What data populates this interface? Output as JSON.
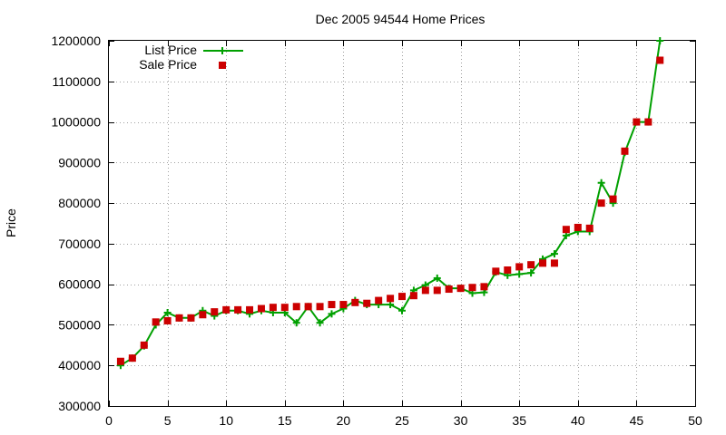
{
  "colors": {
    "list_price": "#00a000",
    "sale_price": "#cc0000",
    "grid": "#a0a0a0",
    "axis": "#000000"
  },
  "chart_data": {
    "type": "line",
    "title": "Dec 2005 94544 Home Prices",
    "xlabel": "",
    "ylabel": "Price",
    "xlim": [
      0,
      50
    ],
    "ylim": [
      300000,
      1200000
    ],
    "xticks": [
      0,
      5,
      10,
      15,
      20,
      25,
      30,
      35,
      40,
      45,
      50
    ],
    "yticks": [
      300000,
      400000,
      500000,
      600000,
      700000,
      800000,
      900000,
      1000000,
      1100000,
      1200000
    ],
    "xtick_labels": [
      "0",
      "5",
      "10",
      "15",
      "20",
      "25",
      "30",
      "35",
      "40",
      "45",
      "50"
    ],
    "ytick_labels": [
      "300000",
      "400000",
      "500000",
      "600000",
      "700000",
      "800000",
      "900000",
      "1000000",
      "1100000",
      "1200000"
    ],
    "grid": true,
    "legend_position": "top-left",
    "series": [
      {
        "name": "List Price",
        "style": "line-with-plus-markers",
        "color": "#00a000",
        "x": [
          1,
          2,
          3,
          4,
          5,
          6,
          7,
          8,
          9,
          10,
          11,
          12,
          13,
          14,
          15,
          16,
          17,
          18,
          19,
          20,
          21,
          22,
          23,
          24,
          25,
          26,
          27,
          28,
          29,
          30,
          31,
          32,
          33,
          34,
          35,
          36,
          37,
          38,
          39,
          40,
          41,
          42,
          43,
          44,
          45,
          46,
          47
        ],
        "y": [
          400000,
          418000,
          448000,
          500000,
          530000,
          517000,
          517000,
          535000,
          522000,
          535000,
          535000,
          527000,
          535000,
          530000,
          530000,
          505000,
          545000,
          505000,
          527000,
          540000,
          560000,
          550000,
          550000,
          550000,
          535000,
          585000,
          598000,
          615000,
          590000,
          590000,
          578000,
          580000,
          630000,
          622000,
          625000,
          628000,
          662000,
          675000,
          720000,
          730000,
          730000,
          850000,
          800000,
          925000,
          1000000,
          1000000,
          1200000
        ]
      },
      {
        "name": "Sale Price",
        "style": "square-markers",
        "color": "#cc0000",
        "x": [
          1,
          2,
          3,
          4,
          5,
          6,
          7,
          8,
          9,
          10,
          11,
          12,
          13,
          14,
          15,
          16,
          17,
          18,
          19,
          20,
          21,
          22,
          23,
          24,
          25,
          26,
          27,
          28,
          29,
          30,
          31,
          32,
          33,
          34,
          35,
          36,
          37,
          38,
          39,
          40,
          41,
          42,
          43,
          44,
          45,
          46,
          47
        ],
        "y": [
          410000,
          418000,
          450000,
          507000,
          510000,
          517000,
          517000,
          525000,
          532000,
          537000,
          537000,
          537000,
          540000,
          543000,
          543000,
          545000,
          545000,
          545000,
          550000,
          550000,
          555000,
          553000,
          560000,
          565000,
          570000,
          572000,
          585000,
          585000,
          588000,
          590000,
          592000,
          594000,
          632000,
          635000,
          643000,
          648000,
          652000,
          652000,
          735000,
          740000,
          738000,
          800000,
          810000,
          928000,
          1000000,
          1000000,
          1152000
        ]
      }
    ]
  }
}
